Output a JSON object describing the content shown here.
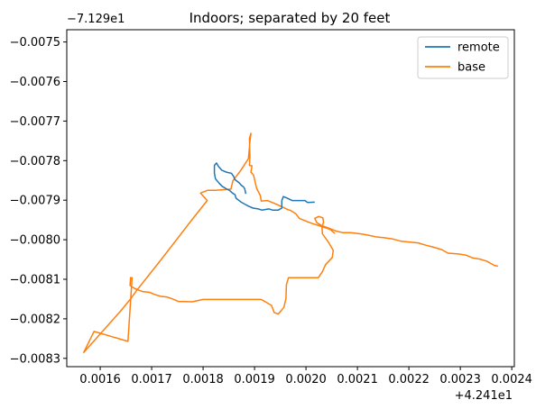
{
  "chart_data": {
    "type": "line",
    "title": "Indoors; separated by 20 feet",
    "xlabel": "",
    "ylabel": "",
    "x_offset_label": "+4.241e1",
    "y_offset_label": "−7.129e1",
    "xlim": [
      0.001535,
      0.002405
    ],
    "ylim": [
      -0.008321,
      -0.007469
    ],
    "x_ticks": [
      0.0016,
      0.0017,
      0.0018,
      0.0019,
      0.002,
      0.0021,
      0.0022,
      0.0023,
      0.0024
    ],
    "x_tick_labels": [
      "0.0016",
      "0.0017",
      "0.0018",
      "0.0019",
      "0.0020",
      "0.0021",
      "0.0022",
      "0.0023",
      "0.0024"
    ],
    "y_ticks": [
      -0.0075,
      -0.0076,
      -0.0077,
      -0.0078,
      -0.0079,
      -0.008,
      -0.0081,
      -0.0082,
      -0.0083
    ],
    "y_tick_labels": [
      "−0.0075",
      "−0.0076",
      "−0.0077",
      "−0.0078",
      "−0.0079",
      "−0.0080",
      "−0.0081",
      "−0.0082",
      "−0.0083"
    ],
    "grid": false,
    "legend_position": "upper-right",
    "series": [
      {
        "name": "remote",
        "color": "#1f77b4",
        "points": [
          [
            0.002017,
            -0.007905
          ],
          [
            0.002003,
            -0.007906
          ],
          [
            0.001998,
            -0.007901
          ],
          [
            0.001973,
            -0.007901
          ],
          [
            0.001962,
            -0.007894
          ],
          [
            0.001956,
            -0.007891
          ],
          [
            0.001953,
            -0.007901
          ],
          [
            0.001953,
            -0.00792
          ],
          [
            0.001946,
            -0.007925
          ],
          [
            0.001935,
            -0.007925
          ],
          [
            0.001928,
            -0.007922
          ],
          [
            0.001914,
            -0.007925
          ],
          [
            0.001907,
            -0.007922
          ],
          [
            0.001897,
            -0.00792
          ],
          [
            0.001888,
            -0.007915
          ],
          [
            0.001881,
            -0.00791
          ],
          [
            0.001874,
            -0.007905
          ],
          [
            0.001869,
            -0.0079
          ],
          [
            0.001864,
            -0.007895
          ],
          [
            0.001862,
            -0.007886
          ],
          [
            0.001857,
            -0.007882
          ],
          [
            0.001851,
            -0.007875
          ],
          [
            0.001846,
            -0.007872
          ],
          [
            0.001837,
            -0.007865
          ],
          [
            0.001831,
            -0.007857
          ],
          [
            0.001824,
            -0.007846
          ],
          [
            0.001822,
            -0.007832
          ],
          [
            0.001822,
            -0.007812
          ],
          [
            0.001826,
            -0.007806
          ],
          [
            0.00183,
            -0.007815
          ],
          [
            0.001836,
            -0.007824
          ],
          [
            0.001843,
            -0.007828
          ],
          [
            0.001848,
            -0.00783
          ],
          [
            0.001855,
            -0.007832
          ],
          [
            0.001859,
            -0.007839
          ],
          [
            0.001862,
            -0.007848
          ],
          [
            0.001866,
            -0.007852
          ],
          [
            0.00187,
            -0.007856
          ],
          [
            0.001874,
            -0.007862
          ],
          [
            0.001879,
            -0.007867
          ],
          [
            0.001881,
            -0.007872
          ],
          [
            0.001883,
            -0.007884
          ]
        ]
      },
      {
        "name": "base",
        "color": "#ff7f0e",
        "points": [
          [
            0.002373,
            -0.008067
          ],
          [
            0.002366,
            -0.008065
          ],
          [
            0.002351,
            -0.008054
          ],
          [
            0.002338,
            -0.008049
          ],
          [
            0.002324,
            -0.008046
          ],
          [
            0.002311,
            -0.008039
          ],
          [
            0.002296,
            -0.008036
          ],
          [
            0.002276,
            -0.008034
          ],
          [
            0.002264,
            -0.008025
          ],
          [
            0.002248,
            -0.008019
          ],
          [
            0.002233,
            -0.008014
          ],
          [
            0.002218,
            -0.008008
          ],
          [
            0.002202,
            -0.008006
          ],
          [
            0.002185,
            -0.008004
          ],
          [
            0.002168,
            -0.007998
          ],
          [
            0.002152,
            -0.007995
          ],
          [
            0.002137,
            -0.007993
          ],
          [
            0.002123,
            -0.007989
          ],
          [
            0.002105,
            -0.007985
          ],
          [
            0.002087,
            -0.007982
          ],
          [
            0.002071,
            -0.007982
          ],
          [
            0.002058,
            -0.007978
          ],
          [
            0.002043,
            -0.00797
          ],
          [
            0.00203,
            -0.007964
          ],
          [
            0.002021,
            -0.007957
          ],
          [
            0.002017,
            -0.007946
          ],
          [
            0.002025,
            -0.007941
          ],
          [
            0.002033,
            -0.007945
          ],
          [
            0.002034,
            -0.007957
          ],
          [
            0.002031,
            -0.007967
          ],
          [
            0.002032,
            -0.007985
          ],
          [
            0.002043,
            -0.008005
          ],
          [
            0.002053,
            -0.008027
          ],
          [
            0.002051,
            -0.008045
          ],
          [
            0.002038,
            -0.008063
          ],
          [
            0.002032,
            -0.008081
          ],
          [
            0.002024,
            -0.008096
          ],
          [
            0.001985,
            -0.008096
          ],
          [
            0.001966,
            -0.008096
          ],
          [
            0.001962,
            -0.008114
          ],
          [
            0.001961,
            -0.008149
          ],
          [
            0.001957,
            -0.008171
          ],
          [
            0.001946,
            -0.008188
          ],
          [
            0.001938,
            -0.008184
          ],
          [
            0.001933,
            -0.008166
          ],
          [
            0.001913,
            -0.008151
          ],
          [
            0.001859,
            -0.008151
          ],
          [
            0.0018,
            -0.008151
          ],
          [
            0.001779,
            -0.008157
          ],
          [
            0.001752,
            -0.008156
          ],
          [
            0.001741,
            -0.00815
          ],
          [
            0.00173,
            -0.008145
          ],
          [
            0.001717,
            -0.008143
          ],
          [
            0.001705,
            -0.008138
          ],
          [
            0.001696,
            -0.008133
          ],
          [
            0.001682,
            -0.008131
          ],
          [
            0.001668,
            -0.008124
          ],
          [
            0.001658,
            -0.008116
          ],
          [
            0.001659,
            -0.008096
          ],
          [
            0.001662,
            -0.008096
          ],
          [
            0.001654,
            -0.008257
          ],
          [
            0.001588,
            -0.008232
          ],
          [
            0.001568,
            -0.008285
          ],
          [
            0.001638,
            -0.008183
          ],
          [
            0.00166,
            -0.008148
          ],
          [
            0.001671,
            -0.008128
          ],
          [
            0.001718,
            -0.008051
          ],
          [
            0.001768,
            -0.007967
          ],
          [
            0.001772,
            -0.00796
          ],
          [
            0.001808,
            -0.007901
          ],
          [
            0.001795,
            -0.007882
          ],
          [
            0.001809,
            -0.007875
          ],
          [
            0.001824,
            -0.007875
          ],
          [
            0.001854,
            -0.007872
          ],
          [
            0.001858,
            -0.007851
          ],
          [
            0.001873,
            -0.007825
          ],
          [
            0.001888,
            -0.007795
          ],
          [
            0.001891,
            -0.007752
          ],
          [
            0.001893,
            -0.007731
          ],
          [
            0.00189,
            -0.007744
          ],
          [
            0.001891,
            -0.007791
          ],
          [
            0.00189,
            -0.007812
          ],
          [
            0.001895,
            -0.007813
          ],
          [
            0.001893,
            -0.007829
          ],
          [
            0.001898,
            -0.007837
          ],
          [
            0.001904,
            -0.00787
          ],
          [
            0.001911,
            -0.007888
          ],
          [
            0.001913,
            -0.007902
          ],
          [
            0.001925,
            -0.007901
          ],
          [
            0.001942,
            -0.00791
          ],
          [
            0.001965,
            -0.007924
          ],
          [
            0.00197,
            -0.007926
          ],
          [
            0.00198,
            -0.007934
          ],
          [
            0.001987,
            -0.007946
          ],
          [
            0.00201,
            -0.007958
          ],
          [
            0.002038,
            -0.00797
          ],
          [
            0.002047,
            -0.007974
          ],
          [
            0.002056,
            -0.007984
          ]
        ]
      }
    ]
  }
}
